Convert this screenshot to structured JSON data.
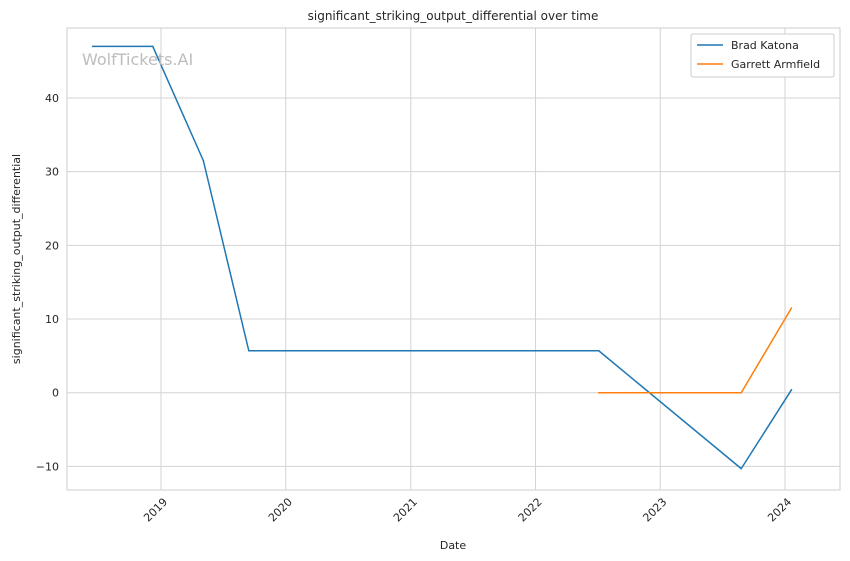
{
  "chart_data": {
    "type": "line",
    "title": "significant_striking_output_differential over time",
    "xlabel": "Date",
    "ylabel": "significant_striking_output_differential",
    "watermark": "WolfTickets.AI",
    "x_ticks": [
      "2019",
      "2020",
      "2021",
      "2022",
      "2023",
      "2024"
    ],
    "y_ticks": [
      -10,
      0,
      10,
      20,
      30,
      40
    ],
    "xlim": [
      "2018-04-01",
      "2024-06-10"
    ],
    "ylim": [
      -13.2,
      49.5
    ],
    "grid": true,
    "legend_position": "top-right",
    "series": [
      {
        "name": "Brad Katona",
        "color": "#1f77b4",
        "points": [
          {
            "x": "2018-06-15",
            "y": 47
          },
          {
            "x": "2018-12-08",
            "y": 47
          },
          {
            "x": "2019-05-05",
            "y": 31.5
          },
          {
            "x": "2019-09-15",
            "y": 5.7
          },
          {
            "x": "2022-07-05",
            "y": 5.7
          },
          {
            "x": "2023-08-26",
            "y": -10.3
          },
          {
            "x": "2024-01-20",
            "y": 0.4
          }
        ]
      },
      {
        "name": "Garrett Armfield",
        "color": "#ff7f0e",
        "points": [
          {
            "x": "2022-07-05",
            "y": 0
          },
          {
            "x": "2023-08-26",
            "y": 0
          },
          {
            "x": "2024-01-20",
            "y": 11.5
          }
        ]
      }
    ]
  }
}
